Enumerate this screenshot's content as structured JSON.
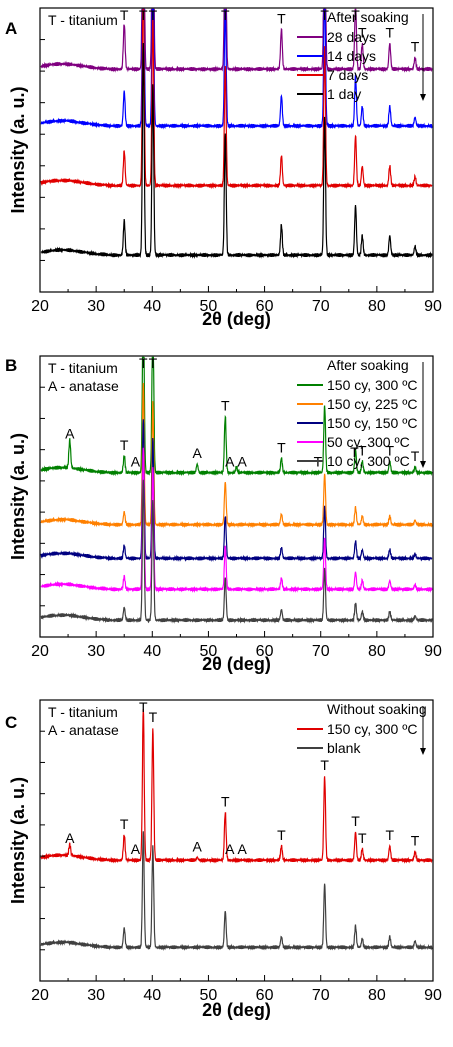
{
  "panels": [
    {
      "letter": "A",
      "notes": [
        "T - titanium"
      ],
      "legend_title": "After soaking",
      "xlabel": "2θ (deg)",
      "ylabel": "Intensity (a. u.)",
      "xlim": [
        20,
        90
      ],
      "xticks": [
        "20",
        "30",
        "40",
        "50",
        "60",
        "70",
        "80",
        "90"
      ],
      "series": [
        {
          "name": "28 days",
          "color": "#800080",
          "baseline": 0.785,
          "phase": "T"
        },
        {
          "name": "14 days",
          "color": "#0000ff",
          "baseline": 0.585,
          "phase": "T"
        },
        {
          "name": "7 days",
          "color": "#e00000",
          "baseline": 0.375,
          "phase": "T"
        },
        {
          "name": "1 day",
          "color": "#000000",
          "baseline": 0.13,
          "phase": "T"
        }
      ],
      "top_peaks": [
        {
          "x": 35.0,
          "h": 0.16
        },
        {
          "x": 38.4,
          "h": 0.98
        },
        {
          "x": 40.1,
          "h": 0.79
        },
        {
          "x": 53.0,
          "h": 0.56
        },
        {
          "x": 63.0,
          "h": 0.14
        },
        {
          "x": 70.7,
          "h": 0.64
        },
        {
          "x": 76.2,
          "h": 0.23
        },
        {
          "x": 77.4,
          "h": 0.09
        },
        {
          "x": 82.3,
          "h": 0.09
        },
        {
          "x": 86.8,
          "h": 0.04
        }
      ],
      "peak_labels": [
        {
          "text": "T",
          "x": 35.0
        },
        {
          "text": "T",
          "x": 38.4
        },
        {
          "text": "T",
          "x": 40.1
        },
        {
          "text": "T",
          "x": 53.0
        },
        {
          "text": "T",
          "x": 63.0
        },
        {
          "text": "T",
          "x": 70.7
        },
        {
          "text": "T",
          "x": 76.2
        },
        {
          "text": "T",
          "x": 77.4
        },
        {
          "text": "T",
          "x": 82.3
        },
        {
          "text": "T",
          "x": 86.8
        }
      ]
    },
    {
      "letter": "B",
      "notes": [
        "T - titanium",
        "A - anatase"
      ],
      "legend_title": "After soaking",
      "xlabel": "2θ (deg)",
      "ylabel": "Intensity (a. u.)",
      "xlim": [
        20,
        90
      ],
      "xticks": [
        "20",
        "30",
        "40",
        "50",
        "60",
        "70",
        "80",
        "90"
      ],
      "series": [
        {
          "name": "150 cy, 300 ºC",
          "color": "#008000",
          "baseline": 0.585,
          "phase": "TA"
        },
        {
          "name": "150 cy, 225 ºC",
          "color": "#ff8000",
          "baseline": 0.4,
          "phase": "T"
        },
        {
          "name": "150 cy, 150 ºC",
          "color": "#000080",
          "baseline": 0.28,
          "phase": "T"
        },
        {
          "name": "50 cy, 300 ºC",
          "color": "#ff00ff",
          "baseline": 0.17,
          "phase": "T"
        },
        {
          "name": "10 cy, 300 ºC",
          "color": "#404040",
          "baseline": 0.06,
          "phase": "T"
        }
      ],
      "top_peaks": [
        {
          "x": 25.3,
          "h": 0.1
        },
        {
          "x": 35.0,
          "h": 0.06
        },
        {
          "x": 38.4,
          "h": 0.66
        },
        {
          "x": 40.1,
          "h": 0.57
        },
        {
          "x": 48.0,
          "h": 0.03
        },
        {
          "x": 53.0,
          "h": 0.2
        },
        {
          "x": 55.0,
          "h": 0.02
        },
        {
          "x": 63.0,
          "h": 0.05
        },
        {
          "x": 70.7,
          "h": 0.24
        },
        {
          "x": 76.2,
          "h": 0.08
        },
        {
          "x": 77.4,
          "h": 0.04
        },
        {
          "x": 82.3,
          "h": 0.04
        },
        {
          "x": 86.8,
          "h": 0.02
        }
      ],
      "peak_labels": [
        {
          "text": "A",
          "x": 25.3
        },
        {
          "text": "T",
          "x": 35.0
        },
        {
          "text": "A",
          "x": 37.0
        },
        {
          "text": "T",
          "x": 38.4
        },
        {
          "text": "T",
          "x": 40.1
        },
        {
          "text": "A",
          "x": 48.0
        },
        {
          "text": "T",
          "x": 53.0
        },
        {
          "text": "A",
          "x": 53.8
        },
        {
          "text": "A",
          "x": 56.0
        },
        {
          "text": "T",
          "x": 63.0
        },
        {
          "text": "T",
          "x": 69.5
        },
        {
          "text": "T",
          "x": 76.0
        },
        {
          "text": "T",
          "x": 77.4
        },
        {
          "text": "T",
          "x": 82.3
        },
        {
          "text": "T",
          "x": 86.8
        }
      ]
    },
    {
      "letter": "C",
      "notes": [
        "T - titanium",
        "A - anatase"
      ],
      "legend_title": "Without soaking",
      "xlabel": "2θ (deg)",
      "ylabel": "Intensity (a. u.)",
      "xlim": [
        20,
        90
      ],
      "xticks": [
        "20",
        "30",
        "40",
        "50",
        "60",
        "70",
        "80",
        "90"
      ],
      "series": [
        {
          "name": "150 cy, 300 ºC",
          "color": "#e00000",
          "baseline": 0.43,
          "phase": "TA"
        },
        {
          "name": "blank",
          "color": "#404040",
          "baseline": 0.12,
          "phase": "T"
        }
      ],
      "top_peaks": [
        {
          "x": 25.3,
          "h": 0.04
        },
        {
          "x": 35.0,
          "h": 0.09
        },
        {
          "x": 38.4,
          "h": 0.54
        },
        {
          "x": 40.1,
          "h": 0.47
        },
        {
          "x": 48.0,
          "h": 0.01
        },
        {
          "x": 53.0,
          "h": 0.17
        },
        {
          "x": 63.0,
          "h": 0.05
        },
        {
          "x": 70.7,
          "h": 0.3
        },
        {
          "x": 76.2,
          "h": 0.1
        },
        {
          "x": 77.4,
          "h": 0.04
        },
        {
          "x": 82.3,
          "h": 0.05
        },
        {
          "x": 86.8,
          "h": 0.03
        }
      ],
      "peak_labels": [
        {
          "text": "A",
          "x": 25.3
        },
        {
          "text": "T",
          "x": 35.0
        },
        {
          "text": "A",
          "x": 37.0
        },
        {
          "text": "T",
          "x": 38.4
        },
        {
          "text": "T",
          "x": 40.1
        },
        {
          "text": "A",
          "x": 48.0
        },
        {
          "text": "T",
          "x": 53.0
        },
        {
          "text": "A",
          "x": 53.8
        },
        {
          "text": "A",
          "x": 56.0
        },
        {
          "text": "T",
          "x": 63.0
        },
        {
          "text": "T",
          "x": 70.7
        },
        {
          "text": "T",
          "x": 76.2
        },
        {
          "text": "T",
          "x": 77.4
        },
        {
          "text": "T",
          "x": 82.3
        },
        {
          "text": "T",
          "x": 86.8
        }
      ]
    }
  ],
  "chart_data": [
    {
      "type": "line",
      "title": "",
      "xlabel": "2θ (deg)",
      "ylabel": "Intensity (a. u.)",
      "xlim": [
        20,
        90
      ],
      "legend_title": "After soaking",
      "legend_position": "top-right",
      "annotations": [
        "T - titanium"
      ],
      "series": [
        {
          "name": "28 days",
          "peaks_x": [
            35.0,
            38.4,
            40.1,
            53.0,
            63.0,
            70.7,
            76.2,
            77.4,
            82.3,
            86.8
          ]
        },
        {
          "name": "14 days",
          "peaks_x": [
            35.0,
            38.4,
            40.1,
            53.0,
            63.0,
            70.7,
            76.2,
            77.4,
            82.3,
            86.8
          ]
        },
        {
          "name": "7 days",
          "peaks_x": [
            35.0,
            38.4,
            40.1,
            53.0,
            63.0,
            70.7,
            76.2,
            77.4,
            82.3,
            86.8
          ]
        },
        {
          "name": "1 day",
          "peaks_x": [
            35.0,
            38.4,
            40.1,
            53.0,
            63.0,
            70.7,
            76.2,
            77.4,
            82.3,
            86.8
          ]
        }
      ]
    },
    {
      "type": "line",
      "title": "",
      "xlabel": "2θ (deg)",
      "ylabel": "Intensity (a. u.)",
      "xlim": [
        20,
        90
      ],
      "legend_title": "After soaking",
      "legend_position": "top-right",
      "annotations": [
        "T - titanium",
        "A - anatase"
      ],
      "series": [
        {
          "name": "150 cy, 300 ºC",
          "peaks_x": [
            25.3,
            35.0,
            38.4,
            40.1,
            48.0,
            53.0,
            55.0,
            63.0,
            70.7,
            76.2,
            77.4,
            82.3,
            86.8
          ]
        },
        {
          "name": "150 cy, 225 ºC",
          "peaks_x": [
            35.0,
            38.4,
            40.1,
            53.0,
            63.0,
            70.7,
            76.2,
            77.4,
            82.3,
            86.8
          ]
        },
        {
          "name": "150 cy, 150 ºC",
          "peaks_x": [
            35.0,
            38.4,
            40.1,
            53.0,
            63.0,
            70.7,
            76.2,
            77.4,
            82.3,
            86.8
          ]
        },
        {
          "name": "50 cy, 300 ºC",
          "peaks_x": [
            35.0,
            38.4,
            40.1,
            53.0,
            63.0,
            70.7,
            76.2,
            77.4,
            82.3,
            86.8
          ]
        },
        {
          "name": "10 cy, 300 ºC",
          "peaks_x": [
            35.0,
            38.4,
            40.1,
            53.0,
            63.0,
            70.7,
            76.2,
            77.4,
            82.3,
            86.8
          ]
        }
      ]
    },
    {
      "type": "line",
      "title": "",
      "xlabel": "2θ (deg)",
      "ylabel": "Intensity (a. u.)",
      "xlim": [
        20,
        90
      ],
      "legend_title": "Without soaking",
      "legend_position": "top-right",
      "annotations": [
        "T - titanium",
        "A - anatase"
      ],
      "series": [
        {
          "name": "150 cy, 300 ºC",
          "peaks_x": [
            25.3,
            35.0,
            38.4,
            40.1,
            48.0,
            53.0,
            63.0,
            70.7,
            76.2,
            77.4,
            82.3,
            86.8
          ]
        },
        {
          "name": "blank",
          "peaks_x": [
            35.0,
            38.4,
            40.1,
            53.0,
            63.0,
            70.7,
            76.2,
            77.4,
            82.3,
            86.8
          ]
        }
      ]
    }
  ]
}
